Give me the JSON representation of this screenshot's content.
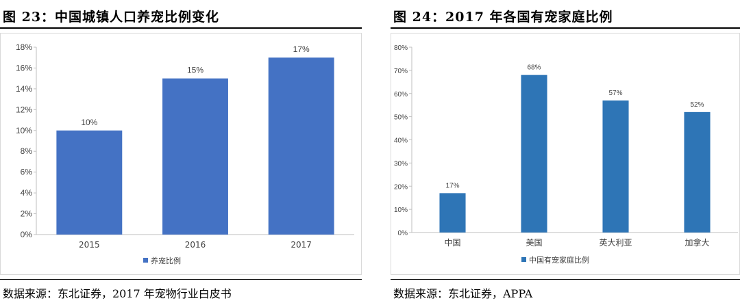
{
  "charts": [
    {
      "figure_title": "图 23：中国城镇人口养宠比例变化",
      "source": "数据来源：东北证券，2017 年宠物行业白皮书",
      "color": "#4472c4",
      "chart_data": {
        "type": "bar",
        "categories": [
          "2015",
          "2016",
          "2017"
        ],
        "series": [
          {
            "name": "养宠比例",
            "values": [
              10,
              15,
              17
            ]
          }
        ],
        "data_labels": [
          "10%",
          "15%",
          "17%"
        ],
        "y_ticks": [
          "0%",
          "2%",
          "4%",
          "6%",
          "8%",
          "10%",
          "12%",
          "14%",
          "16%",
          "18%"
        ],
        "ylim": [
          0,
          18
        ],
        "legend_position": "bottom",
        "grid": false
      }
    },
    {
      "figure_title": "图 24：2017 年各国有宠家庭比例",
      "source": "数据来源：东北证券，APPA",
      "color": "#2e75b6",
      "chart_data": {
        "type": "bar",
        "categories": [
          "中国",
          "美国",
          "英大利亚",
          "加拿大"
        ],
        "series": [
          {
            "name": "中国有宠家庭比例",
            "values": [
              17,
              68,
              57,
              52
            ]
          }
        ],
        "data_labels": [
          "17%",
          "68%",
          "57%",
          "52%"
        ],
        "y_ticks": [
          "0%",
          "10%",
          "20%",
          "30%",
          "40%",
          "50%",
          "60%",
          "70%",
          "80%"
        ],
        "ylim": [
          0,
          80
        ],
        "legend_position": "bottom",
        "grid": false
      }
    }
  ]
}
